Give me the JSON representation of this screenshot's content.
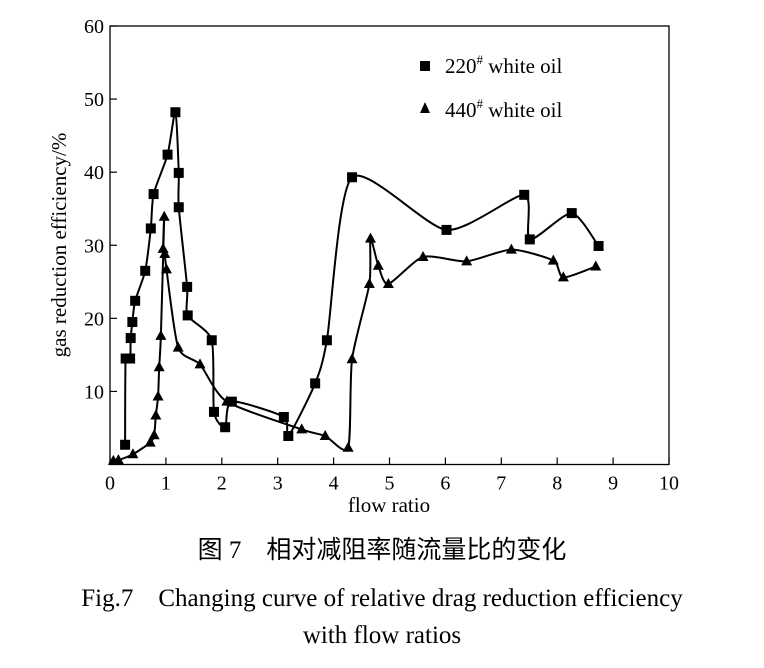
{
  "chart_data": {
    "type": "line",
    "title": "",
    "xlabel": "flow ratio",
    "ylabel": "gas reduction efficiency/%",
    "xlim": [
      0,
      10
    ],
    "ylim": [
      0,
      60
    ],
    "xticks": [
      0,
      1,
      2,
      3,
      4,
      5,
      6,
      7,
      8,
      9,
      10
    ],
    "yticks": [
      10,
      20,
      30,
      40,
      50,
      60
    ],
    "y_tick_labels": [
      "10",
      "20",
      "30",
      "40",
      "50",
      "60"
    ],
    "x_tick_labels": [
      "0",
      "1",
      "2",
      "3",
      "4",
      "5",
      "6",
      "7",
      "8",
      "9",
      "10"
    ],
    "grid": false,
    "legend_placement": "top-right",
    "series": [
      {
        "name": "220",
        "name_sup": "#",
        "name_suffix": " white oil",
        "marker": "square",
        "x": [
          0.27,
          0.28,
          0.36,
          0.37,
          0.4,
          0.45,
          0.63,
          0.73,
          0.78,
          1.03,
          1.17,
          1.23,
          1.23,
          1.38,
          1.39,
          1.82,
          1.86,
          2.06,
          2.18,
          3.11,
          3.19,
          3.67,
          3.88,
          4.33,
          6.02,
          7.41,
          7.51,
          8.26,
          8.74
        ],
        "y": [
          2.7,
          14.5,
          14.5,
          17.3,
          19.5,
          22.4,
          26.5,
          32.3,
          37.0,
          42.4,
          48.2,
          39.9,
          35.2,
          24.3,
          20.4,
          17.0,
          7.2,
          5.1,
          8.6,
          6.5,
          3.9,
          11.1,
          17.0,
          39.3,
          32.1,
          36.9,
          30.8,
          34.4,
          29.9
        ]
      },
      {
        "name": "440",
        "name_sup": "#",
        "name_suffix": " white oil",
        "marker": "triangle",
        "x": [
          0.06,
          0.15,
          0.41,
          0.72,
          0.79,
          0.82,
          0.86,
          0.88,
          0.91,
          0.97,
          0.95,
          0.98,
          1.01,
          1.22,
          1.61,
          2.09,
          3.43,
          3.85,
          4.26,
          4.33,
          4.64,
          4.66,
          4.8,
          4.98,
          5.6,
          6.38,
          7.18,
          7.93,
          8.11,
          8.69
        ],
        "y": [
          0.5,
          0.6,
          1.4,
          3.0,
          4.0,
          6.7,
          9.3,
          13.3,
          17.6,
          33.9,
          29.5,
          28.8,
          26.7,
          16.0,
          13.7,
          8.6,
          4.8,
          3.9,
          2.3,
          14.4,
          24.7,
          30.9,
          27.2,
          24.7,
          28.4,
          27.8,
          29.4,
          27.9,
          25.6,
          27.1
        ]
      }
    ]
  },
  "caption": {
    "cn": "图 7　相对减阻率随流量比的变化",
    "en_line1": "Fig.7　Changing curve of relative drag reduction efficiency",
    "en_line2": "with flow ratios"
  }
}
